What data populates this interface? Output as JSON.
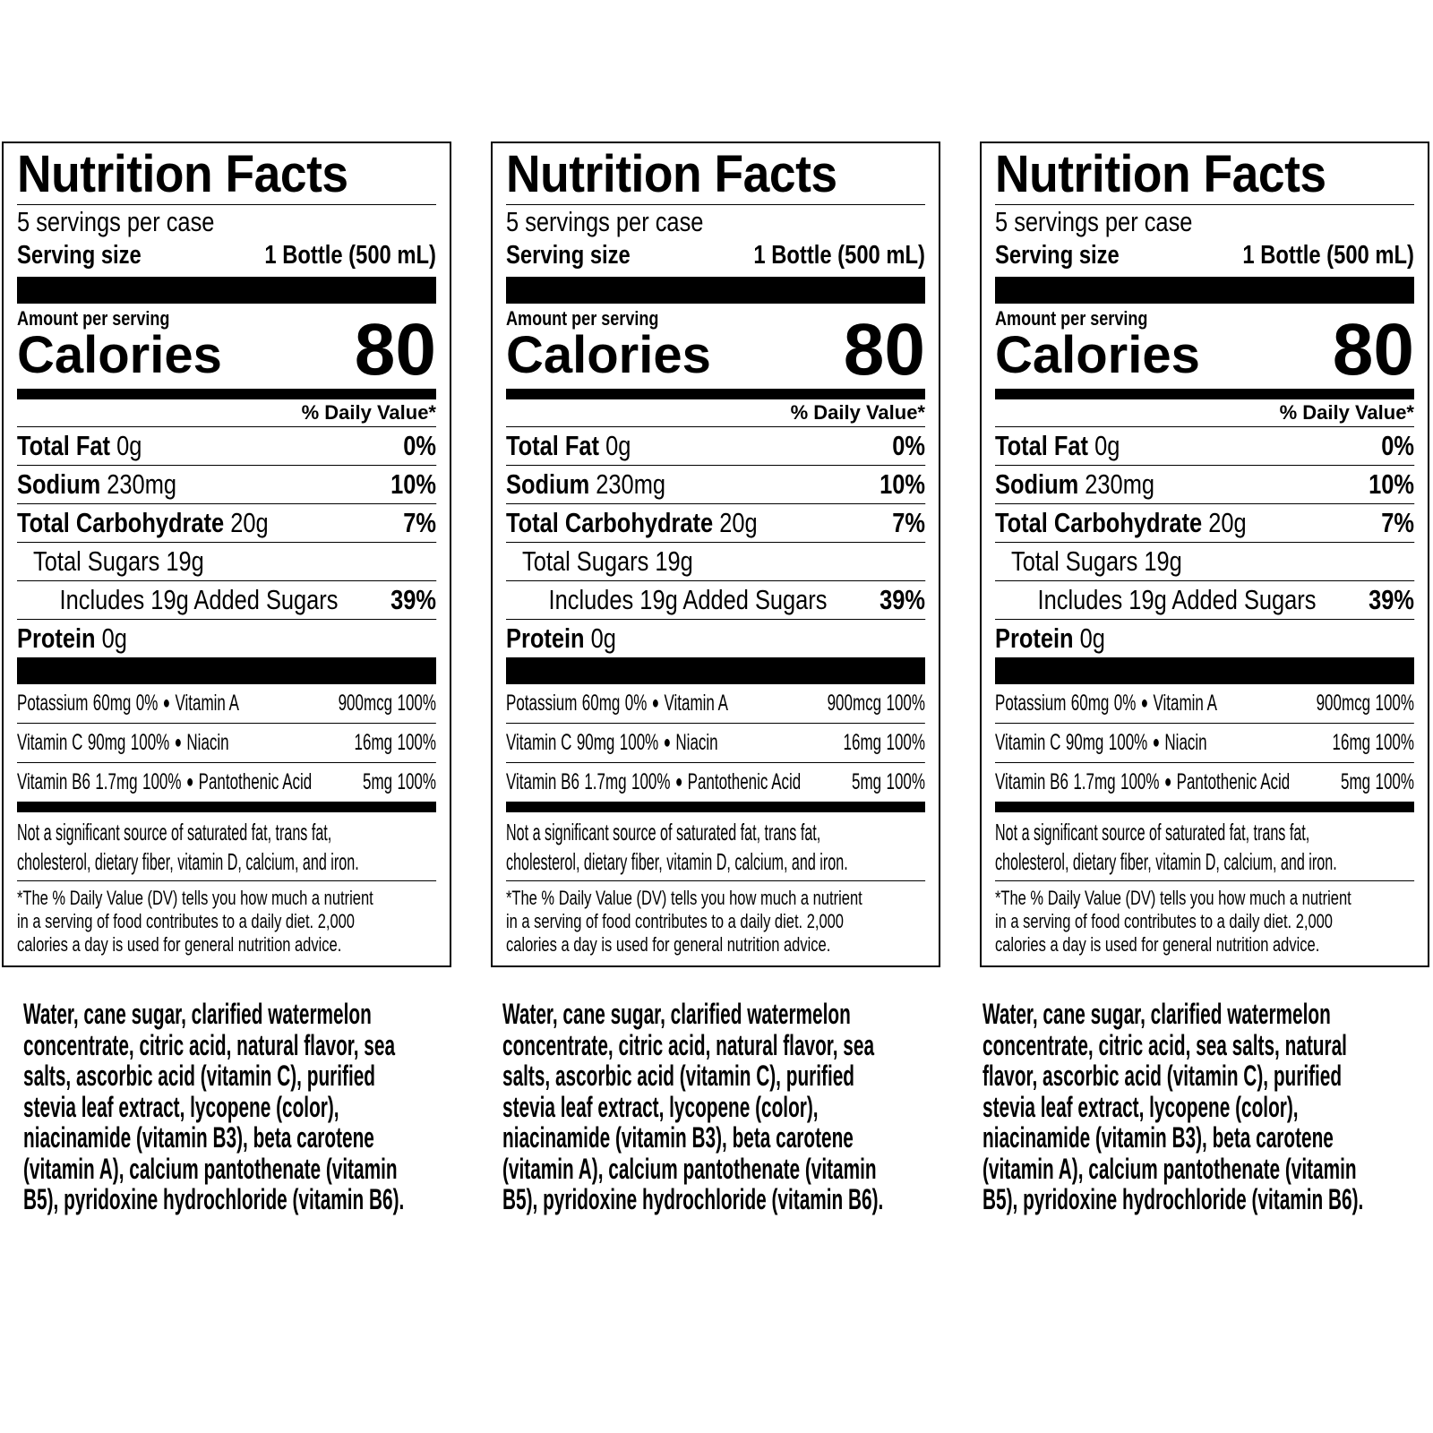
{
  "panels": [
    {
      "title": "Nutrition Facts",
      "servings_per_container": "5 servings per case",
      "serving_size_label": "Serving size",
      "serving_size_value": "1 Bottle (500 mL)",
      "amount_per_serving": "Amount per serving",
      "calories_label": "Calories",
      "calories_value": "80",
      "daily_value_header": "% Daily Value*",
      "nutrients": [
        {
          "name": "Total Fat",
          "amount": "0g",
          "dv": "0%"
        },
        {
          "name": "Sodium",
          "amount": "230mg",
          "dv": "10%"
        },
        {
          "name": "Total Carbohydrate",
          "amount": "20g",
          "dv": "7%"
        },
        {
          "name": "Total Sugars 19g",
          "amount": "",
          "dv": ""
        },
        {
          "name": "Includes 19g Added Sugars",
          "amount": "",
          "dv": "39%"
        },
        {
          "name": "Protein",
          "amount": "0g",
          "dv": ""
        }
      ],
      "vitamins": [
        [
          "Potassium",
          "60mg",
          "0%",
          "Vitamin A",
          "900mcg",
          "100%"
        ],
        [
          "Vitamin C",
          "90mg",
          "100%",
          "Niacin",
          "16mg",
          "100%"
        ],
        [
          "Vitamin B6",
          "1.7mg",
          "100%",
          "Pantothenic Acid",
          "5mg",
          "100%"
        ]
      ],
      "not_significant": [
        "Not a significant source of saturated fat, trans fat,",
        "cholesterol, dietary fiber, vitamin D, calcium, and iron."
      ],
      "footnote": [
        "*The % Daily Value (DV) tells you how much a nutrient",
        "in a serving of food contributes to a daily diet. 2,000",
        "calories a day is used for general nutrition advice."
      ],
      "ingredients": [
        "Water, cane sugar, clarified watermelon",
        "concentrate, citric acid, natural flavor, sea",
        "salts, ascorbic acid (vitamin C), purified",
        "stevia leaf extract, lycopene (color),",
        "niacinamide (vitamin B3), beta carotene",
        "(vitamin A), calcium pantothenate (vitamin",
        "B5), pyridoxine hydrochloride (vitamin B6)."
      ]
    },
    {
      "title": "Nutrition Facts",
      "servings_per_container": "5 servings per case",
      "serving_size_label": "Serving size",
      "serving_size_value": "1 Bottle (500 mL)",
      "amount_per_serving": "Amount per serving",
      "calories_label": "Calories",
      "calories_value": "80",
      "daily_value_header": "% Daily Value*",
      "nutrients": [
        {
          "name": "Total Fat",
          "amount": "0g",
          "dv": "0%"
        },
        {
          "name": "Sodium",
          "amount": "230mg",
          "dv": "10%"
        },
        {
          "name": "Total Carbohydrate",
          "amount": "20g",
          "dv": "7%"
        },
        {
          "name": "Total Sugars 19g",
          "amount": "",
          "dv": ""
        },
        {
          "name": "Includes 19g Added Sugars",
          "amount": "",
          "dv": "39%"
        },
        {
          "name": "Protein",
          "amount": "0g",
          "dv": ""
        }
      ],
      "vitamins": [
        [
          "Potassium",
          "60mg",
          "0%",
          "Vitamin A",
          "900mcg",
          "100%"
        ],
        [
          "Vitamin C",
          "90mg",
          "100%",
          "Niacin",
          "16mg",
          "100%"
        ],
        [
          "Vitamin B6",
          "1.7mg",
          "100%",
          "Pantothenic Acid",
          "5mg",
          "100%"
        ]
      ],
      "not_significant": [
        "Not a significant source of saturated fat, trans fat,",
        "cholesterol, dietary fiber, vitamin D, calcium, and iron."
      ],
      "footnote": [
        "*The % Daily Value (DV) tells you how much a nutrient",
        "in a serving of food contributes to a daily diet. 2,000",
        "calories a day is used for general nutrition advice."
      ],
      "ingredients": [
        "Water, cane sugar, clarified watermelon",
        "concentrate, citric acid, natural flavor, sea",
        "salts, ascorbic acid (vitamin C), purified",
        "stevia leaf extract, lycopene (color),",
        "niacinamide (vitamin B3), beta carotene",
        "(vitamin A), calcium pantothenate (vitamin",
        "B5), pyridoxine hydrochloride (vitamin B6)."
      ]
    },
    {
      "title": "Nutrition Facts",
      "servings_per_container": "5 servings per case",
      "serving_size_label": "Serving size",
      "serving_size_value": "1 Bottle (500 mL)",
      "amount_per_serving": "Amount per serving",
      "calories_label": "Calories",
      "calories_value": "80",
      "daily_value_header": "% Daily Value*",
      "nutrients": [
        {
          "name": "Total Fat",
          "amount": "0g",
          "dv": "0%"
        },
        {
          "name": "Sodium",
          "amount": "230mg",
          "dv": "10%"
        },
        {
          "name": "Total Carbohydrate",
          "amount": "20g",
          "dv": "7%"
        },
        {
          "name": "Total Sugars 19g",
          "amount": "",
          "dv": ""
        },
        {
          "name": "Includes 19g Added Sugars",
          "amount": "",
          "dv": "39%"
        },
        {
          "name": "Protein",
          "amount": "0g",
          "dv": ""
        }
      ],
      "vitamins": [
        [
          "Potassium",
          "60mg",
          "0%",
          "Vitamin A",
          "900mcg",
          "100%"
        ],
        [
          "Vitamin C",
          "90mg",
          "100%",
          "Niacin",
          "16mg",
          "100%"
        ],
        [
          "Vitamin B6",
          "1.7mg",
          "100%",
          "Pantothenic Acid",
          "5mg",
          "100%"
        ]
      ],
      "not_significant": [
        "Not a significant source of saturated fat, trans fat,",
        "cholesterol, dietary fiber, vitamin D, calcium, and iron."
      ],
      "footnote": [
        "*The % Daily Value (DV) tells you how much a nutrient",
        "in a serving of food contributes to a daily diet. 2,000",
        "calories a day is used for general nutrition advice."
      ],
      "ingredients": [
        "Water, cane sugar, clarified watermelon",
        "concentrate, citric acid, sea salts, natural",
        "flavor, ascorbic acid (vitamin C), purified",
        "stevia leaf extract, lycopene (color),",
        "niacinamide (vitamin B3), beta carotene",
        "(vitamin A), calcium pantothenate (vitamin",
        "B5), pyridoxine hydrochloride (vitamin B6)."
      ]
    }
  ]
}
